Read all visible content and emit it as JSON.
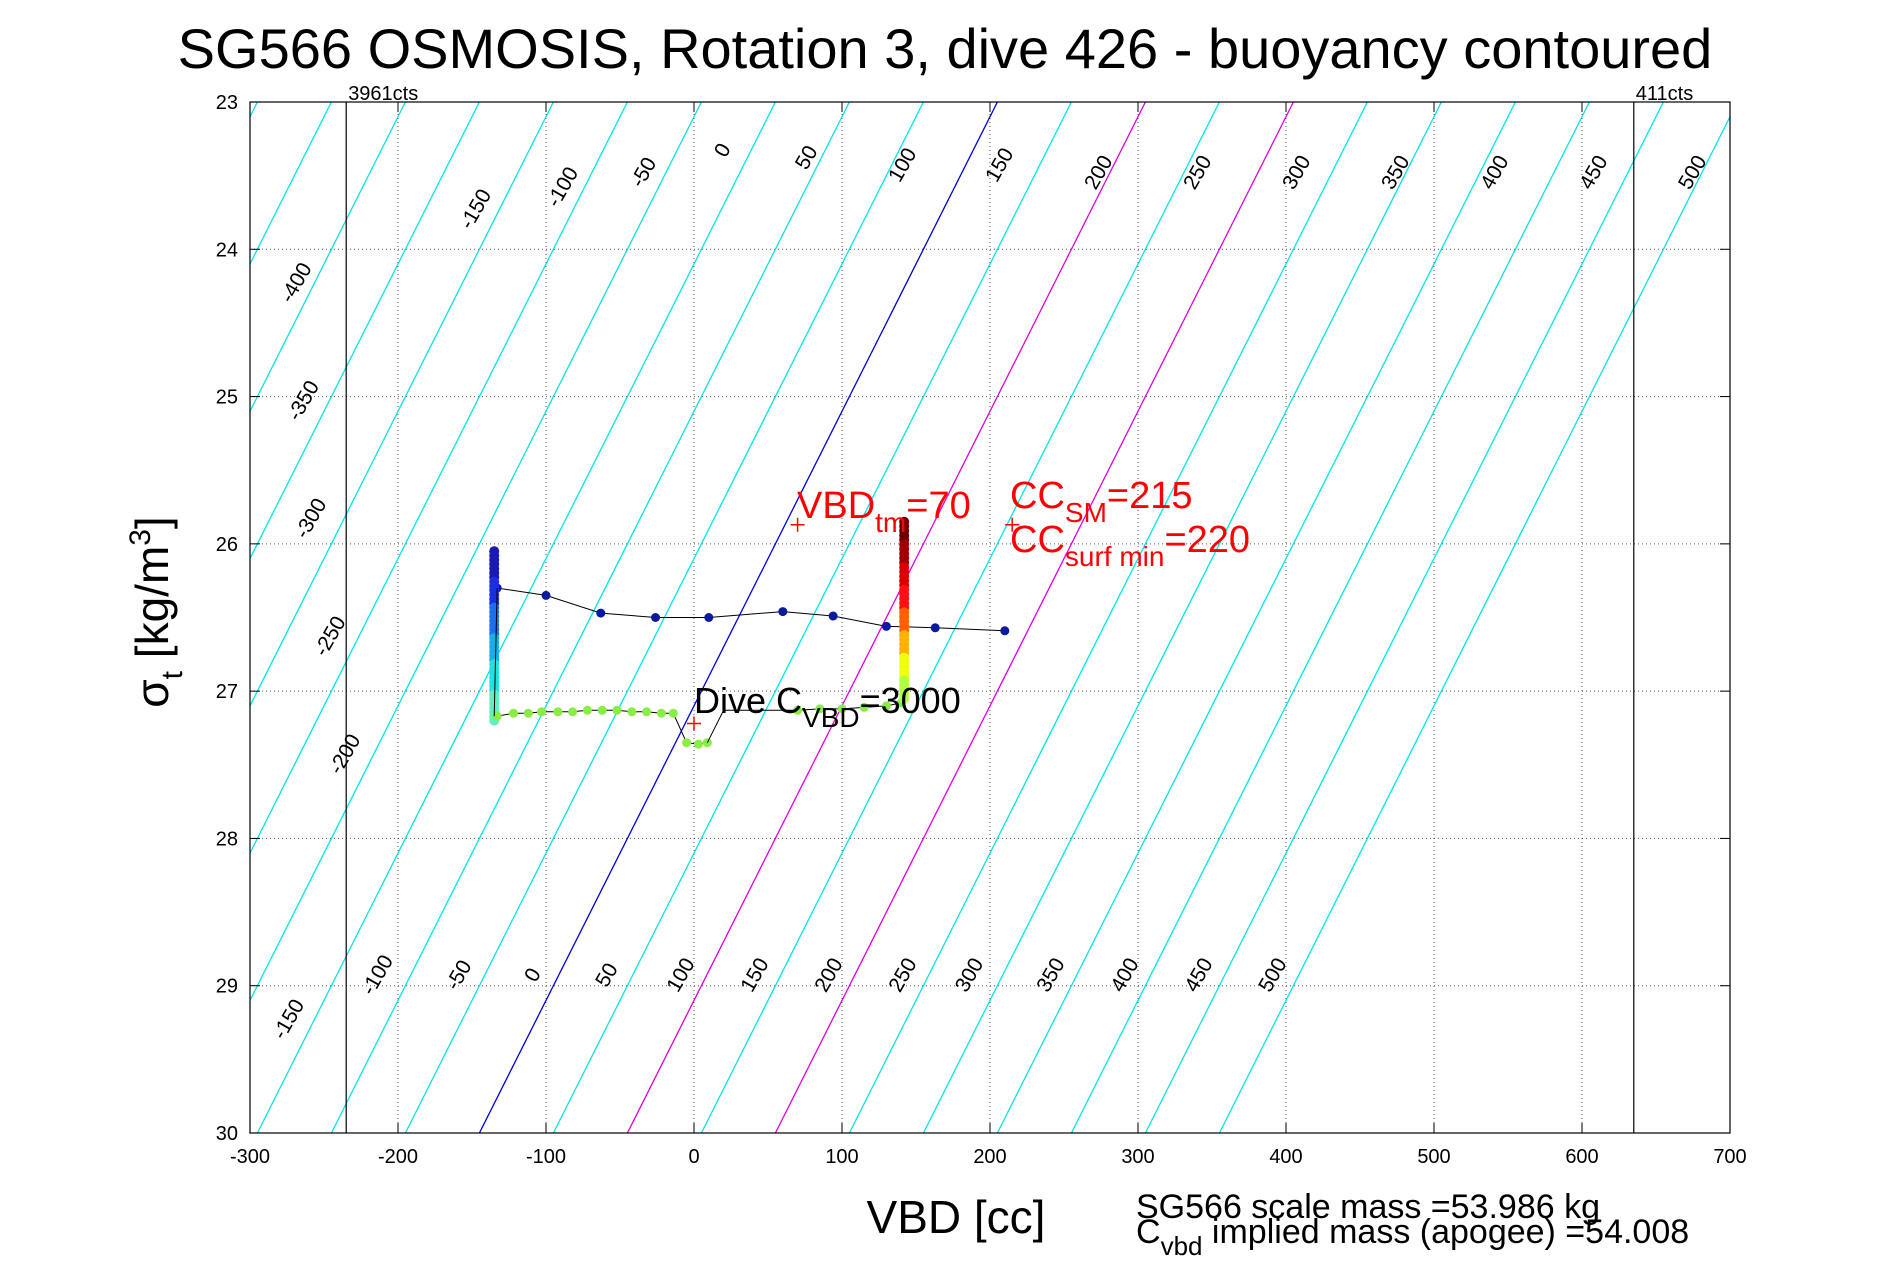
{
  "chart_data": {
    "type": "line",
    "title": "SG566 OSMOSIS, Rotation 3, dive 426 - buoyancy contoured",
    "xlabel": "VBD [cc]",
    "ylabel_main": "σ",
    "ylabel_sub": "t",
    "ylabel_unit": " [kg/m",
    "ylabel_sup": "3",
    "ylabel_close": "]",
    "xlim": [
      -300,
      700
    ],
    "ylim": [
      23,
      30
    ],
    "y_reversed": true,
    "grid": true,
    "x_ticks": [
      -300,
      -200,
      -100,
      0,
      100,
      200,
      300,
      400,
      500,
      600,
      700
    ],
    "y_ticks": [
      23,
      24,
      25,
      26,
      27,
      28,
      29,
      30
    ],
    "vbd_limits": [
      {
        "x": -235,
        "label": "3961cts"
      },
      {
        "x": 635,
        "label": "411cts"
      }
    ],
    "buoyancy_contours": {
      "values": [
        -500,
        -450,
        -400,
        -350,
        -300,
        -250,
        -200,
        -150,
        -100,
        -50,
        0,
        50,
        100,
        150,
        200,
        250,
        300,
        350,
        400,
        450,
        500
      ],
      "slope_cc_per_sigma": -50,
      "x_at_sigma_26_for_zero": 55,
      "colors": {
        "default": "#00e5e5",
        "zero": "#0000dd",
        "highlight": "#e000e0"
      },
      "highlight_values": [
        100,
        200
      ],
      "top_labels": [
        "-150",
        "-100",
        "-50",
        "0",
        "50",
        "100",
        "150",
        "200",
        "250",
        "300",
        "350",
        "400",
        "450",
        "500"
      ],
      "bottom_labels": [
        "-150",
        "-100",
        "-50",
        "0",
        "50",
        "100",
        "150",
        "200",
        "250",
        "300",
        "350",
        "400",
        "450",
        "500"
      ],
      "left_labels": [
        "-400",
        "-350",
        "-300",
        "-250",
        "-200"
      ]
    },
    "series": [
      {
        "style": "dots_dark_blue",
        "color": "#0a1aa0",
        "x": [
          -133,
          -100,
          -63,
          -26,
          10,
          60,
          94,
          130,
          163,
          210
        ],
        "y": [
          26.3,
          26.35,
          26.47,
          26.5,
          26.5,
          26.46,
          26.49,
          26.56,
          26.57,
          26.59
        ]
      },
      {
        "style": "vertical_stack_left",
        "x": -135,
        "y_from": 26.05,
        "y_to": 27.2,
        "colors": [
          "#1a1ab0",
          "#1a30e0",
          "#1a70f0",
          "#10b0f0",
          "#20e0e0",
          "#60f0c0"
        ]
      },
      {
        "style": "dots_green",
        "color": "#88ee44",
        "x": [
          -133,
          -122,
          -112,
          -103,
          -92,
          -82,
          -72,
          -62,
          -52,
          -42,
          -32,
          -22,
          -14,
          -5,
          3,
          9
        ],
        "y": [
          27.17,
          27.15,
          27.15,
          27.14,
          27.14,
          27.14,
          27.13,
          27.13,
          27.13,
          27.14,
          27.14,
          27.15,
          27.15,
          27.35,
          27.36,
          27.35
        ]
      },
      {
        "style": "dots_green_right",
        "color": "#88ee44",
        "x": [
          70,
          85,
          100,
          115,
          130,
          140
        ],
        "y": [
          27.13,
          27.12,
          27.12,
          27.11,
          27.1,
          27.08
        ]
      },
      {
        "style": "vertical_stack_right",
        "x": 142,
        "y_from": 25.85,
        "y_to": 27.05,
        "colors": [
          "#6a0000",
          "#a00000",
          "#d80000",
          "#ff1010",
          "#ff6000",
          "#ffb000",
          "#f0ff10",
          "#b0ff40"
        ]
      }
    ],
    "markers": [
      {
        "x": 70,
        "y": 25.87,
        "color": "#ff0000"
      },
      {
        "x": 215,
        "y": 25.87,
        "color": "#ff0000"
      },
      {
        "x": 0,
        "y": 27.22,
        "color": "#ff0000"
      }
    ],
    "annotations": {
      "vbd_tm_main": "VBD",
      "vbd_tm_sub": "tm",
      "vbd_tm_val": "=70",
      "cc_sm_main": "CC",
      "cc_sm_sub": "SM",
      "cc_sm_val": "=215",
      "cc_surf_main": "CC",
      "cc_surf_sub": "surf min",
      "cc_surf_val": "=220",
      "dive_c_main": "Dive C",
      "dive_c_sub": "VBD",
      "dive_c_val": "=3000",
      "scale_mass": "SG566 scale mass =53.986 kg",
      "cvbd_main": "C",
      "cvbd_sub": "vbd",
      "cvbd_rest": " implied mass (apogee) =54.008"
    }
  }
}
